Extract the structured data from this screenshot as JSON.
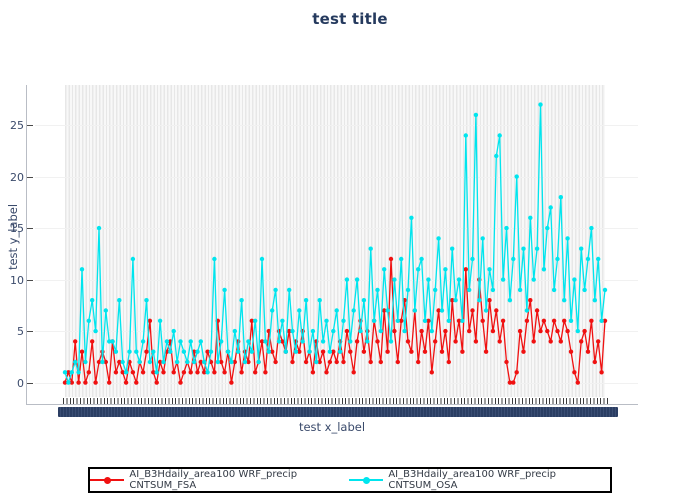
{
  "chart_data": {
    "type": "line",
    "title": "test title",
    "xlabel": "test x_label",
    "ylabel": "test y_label",
    "n_points": 160,
    "x_tick_labels": "dense overlapping category labels rendered as an illegible solid dark band",
    "yticks": [
      0,
      5,
      10,
      15,
      20,
      25
    ],
    "y_range": [
      -1.4,
      28.9
    ],
    "grid": "vertical gridline at every category + horizontal gridlines at yticks",
    "legend_position": "bottom-center",
    "series": [
      {
        "name": "AI_B3Hdaily_area100 WRF_precip CNTSUM_FSA",
        "color": "#f01111",
        "values": [
          0,
          1,
          0,
          4,
          0,
          3,
          0,
          1,
          4,
          0,
          2,
          3,
          2,
          0,
          4,
          1,
          2,
          1,
          0,
          2,
          1,
          0,
          2,
          1,
          3,
          6,
          1,
          0,
          2,
          1,
          3,
          4,
          1,
          2,
          0,
          1,
          2,
          1,
          3,
          1,
          2,
          1,
          3,
          2,
          1,
          6,
          2,
          1,
          3,
          0,
          2,
          4,
          1,
          3,
          2,
          6,
          1,
          2,
          4,
          1,
          5,
          3,
          2,
          5,
          4,
          3,
          5,
          2,
          4,
          3,
          5,
          2,
          3,
          1,
          4,
          2,
          3,
          1,
          2,
          3,
          2,
          4,
          2,
          5,
          3,
          1,
          4,
          6,
          3,
          5,
          2,
          6,
          4,
          2,
          7,
          3,
          12,
          5,
          2,
          6,
          8,
          4,
          3,
          7,
          2,
          5,
          3,
          6,
          1,
          4,
          7,
          3,
          5,
          2,
          8,
          4,
          6,
          3,
          11,
          5,
          7,
          4,
          10,
          6,
          3,
          8,
          5,
          7,
          4,
          6,
          2,
          0,
          0,
          1,
          5,
          3,
          6,
          8,
          4,
          7,
          5,
          6,
          5,
          4,
          6,
          5,
          4,
          6,
          5,
          3,
          1,
          0,
          4,
          5,
          3,
          6,
          2,
          4,
          1,
          6
        ]
      },
      {
        "name": "AI_B3Hdaily_area100 WRF_precip CNTSUM_OSA",
        "color": "#00e5ee",
        "values": [
          1,
          0,
          1,
          2,
          1,
          11,
          2,
          6,
          8,
          5,
          15,
          2,
          7,
          4,
          4,
          3,
          8,
          2,
          1,
          3,
          12,
          3,
          2,
          4,
          8,
          2,
          3,
          1,
          6,
          2,
          4,
          3,
          5,
          2,
          4,
          3,
          2,
          4,
          2,
          3,
          4,
          2,
          1,
          3,
          12,
          2,
          4,
          9,
          3,
          2,
          5,
          3,
          8,
          2,
          4,
          3,
          6,
          2,
          12,
          4,
          3,
          7,
          9,
          4,
          6,
          3,
          9,
          5,
          3,
          7,
          4,
          8,
          3,
          5,
          2,
          8,
          4,
          6,
          3,
          5,
          7,
          3,
          6,
          10,
          4,
          7,
          10,
          5,
          8,
          4,
          13,
          6,
          9,
          5,
          11,
          7,
          4,
          10,
          6,
          12,
          5,
          9,
          16,
          7,
          11,
          12,
          6,
          10,
          5,
          9,
          14,
          7,
          11,
          6,
          13,
          8,
          10,
          6,
          24,
          9,
          12,
          26,
          8,
          14,
          7,
          11,
          9,
          22,
          24,
          10,
          15,
          8,
          12,
          20,
          9,
          13,
          7,
          16,
          10,
          13,
          27,
          11,
          15,
          17,
          9,
          12,
          18,
          8,
          14,
          6,
          10,
          5,
          13,
          9,
          12,
          15,
          8,
          12,
          6,
          9
        ]
      }
    ]
  },
  "axis_text_color": "#3a4a6b",
  "title_color": "#253a5e"
}
